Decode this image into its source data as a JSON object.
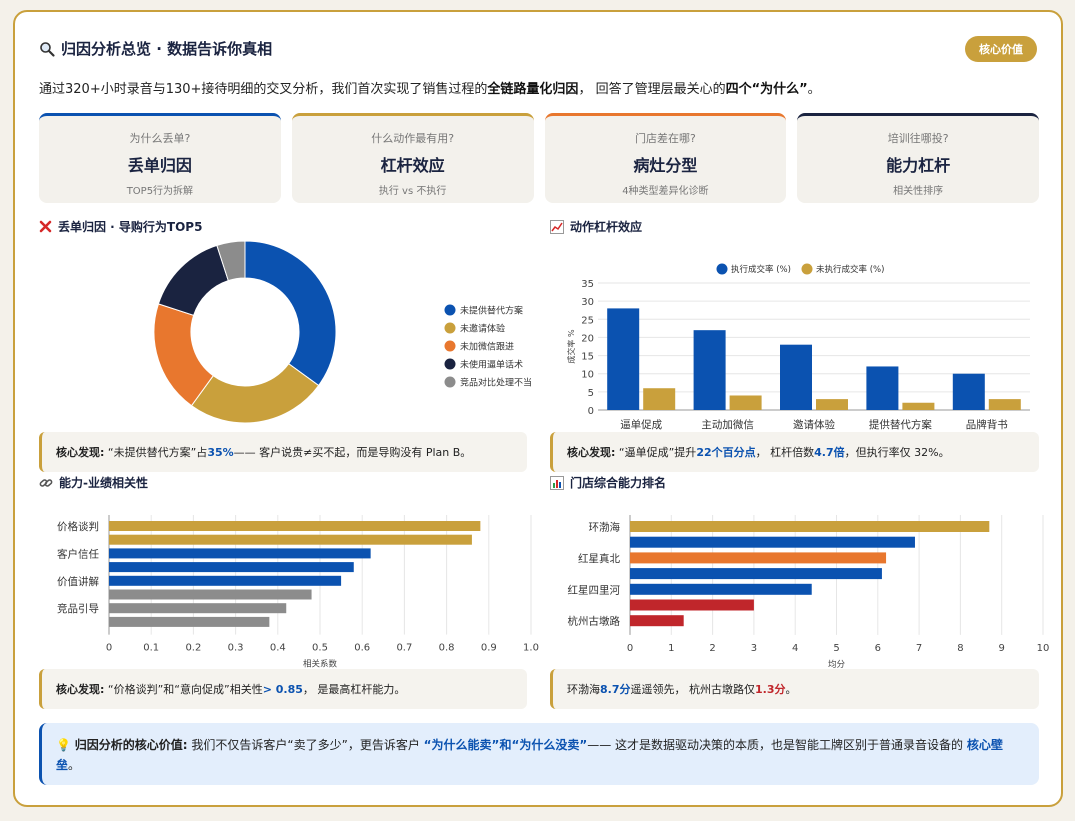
{
  "header": {
    "title": "归因分析总览 · 数据告诉你真相",
    "badge": "核心价值"
  },
  "intro": {
    "p1": "通过320+小时录音与130+接待明细的交叉分析，我们首次实现了销售过程的",
    "b1": "全链路量化归因",
    "p2": "， 回答了管理层最关心的",
    "b2": "四个“为什么”",
    "p3": "。"
  },
  "cards": [
    {
      "q": "为什么丢单?",
      "h": "丢单归因",
      "s": "TOP5行为拆解",
      "color": "#0b52b0"
    },
    {
      "q": "什么动作最有用?",
      "h": "杠杆效应",
      "s": "执行 vs 不执行",
      "color": "#c9a03c"
    },
    {
      "q": "门店差在哪?",
      "h": "病灶分型",
      "s": "4种类型差异化诊断",
      "color": "#e8772e"
    },
    {
      "q": "培训往哪投?",
      "h": "能力杠杆",
      "s": "相关性排序",
      "color": "#1a2340"
    }
  ],
  "sections": {
    "donut": "丢单归因 · 导购行为TOP5",
    "leverage": "动作杠杆效应",
    "correlation": "能力-业绩相关性",
    "ranking": "门店综合能力排名"
  },
  "findings": {
    "f1": {
      "label": "核心发现:",
      "a": "“未提供替代方案”占 ",
      "v": "35%",
      "b": " —— 客户说贵≠买不起，而是导购没有 Plan B。"
    },
    "f2": {
      "label": "核心发现:",
      "a": "“逼单促成”提升 ",
      "v1": "22个百分点",
      "b": "， 杠杆倍数 ",
      "v2": "4.7倍",
      "c": "，但执行率仅 32%。"
    },
    "f3": {
      "label": "核心发现:",
      "a": "“价格谈判”和“意向促成”相关性 ",
      "v": "> 0.85",
      "b": "， 是最高杠杆能力。"
    },
    "f4": {
      "a": "环渤海 ",
      "v1": "8.7分",
      "b": " 遥遥领先， 杭州古墩路仅 ",
      "v2": "1.3分",
      "c": "。"
    }
  },
  "value_box": {
    "label": "归因分析的核心价值:",
    "a": " 我们不仅告诉客户“卖了多少”，更告诉客户 ",
    "v1": "“为什么能卖”和“为什么没卖”",
    "b": "—— 这才是数据驱动决策的本质，也是智能工牌区别于普通录音设备的 ",
    "v2": "核心壁垒",
    "c": "。"
  },
  "chart_data": [
    {
      "type": "pie",
      "title": "丢单归因 · 导购行为TOP5",
      "labels": [
        "未提供替代方案",
        "未邀请体验",
        "未加微信跟进",
        "未使用逼单话术",
        "竞品对比处理不当"
      ],
      "values": [
        35,
        25,
        20,
        15,
        5
      ],
      "colors": [
        "#0b52b0",
        "#c9a03c",
        "#e8772e",
        "#1a2340",
        "#8c8c8c"
      ],
      "legend": "right"
    },
    {
      "type": "bar",
      "title": "动作杠杆效应",
      "categories": [
        "逼单促成",
        "主动加微信",
        "邀请体验",
        "提供替代方案",
        "品牌背书"
      ],
      "series": [
        {
          "name": "执行成交率 (%)",
          "values": [
            28,
            22,
            18,
            12,
            10
          ],
          "color": "#0b52b0"
        },
        {
          "name": "未执行成交率 (%)",
          "values": [
            6,
            4,
            3,
            2,
            3
          ],
          "color": "#c9a03c"
        }
      ],
      "ylabel": "成交率 %",
      "ylim": [
        0,
        35
      ],
      "yticks": [
        0,
        5,
        10,
        15,
        20,
        25,
        30,
        35
      ],
      "legend": "top"
    },
    {
      "type": "bar",
      "orientation": "horizontal",
      "title": "能力-业绩相关性",
      "labels": [
        "价格谈判",
        "",
        "客户信任",
        "",
        "价值讲解",
        "",
        "竞品引导",
        ""
      ],
      "values": [
        0.88,
        0.86,
        0.62,
        0.58,
        0.55,
        0.48,
        0.42,
        0.38
      ],
      "colors": [
        "#c9a03c",
        "#c9a03c",
        "#0b52b0",
        "#0b52b0",
        "#0b52b0",
        "#8c8c8c",
        "#8c8c8c",
        "#8c8c8c"
      ],
      "xlabel": "相关系数",
      "xlim": [
        0,
        1
      ],
      "xticks": [
        "0",
        "0.1",
        "0.2",
        "0.3",
        "0.4",
        "0.5",
        "0.6",
        "0.7",
        "0.8",
        "0.9",
        "1.0"
      ]
    },
    {
      "type": "bar",
      "orientation": "horizontal",
      "title": "门店综合能力排名",
      "labels": [
        "环渤海",
        "",
        "红星真北",
        "",
        "红星四里河",
        "",
        "杭州古墩路"
      ],
      "values": [
        8.7,
        6.9,
        6.2,
        6.1,
        4.4,
        3.0,
        1.3
      ],
      "colors": [
        "#c9a03c",
        "#0b52b0",
        "#e8772e",
        "#0b52b0",
        "#0b52b0",
        "#c0262b",
        "#c0262b"
      ],
      "xlabel": "均分",
      "xlim": [
        0,
        10
      ],
      "xticks": [
        "0",
        "1",
        "2",
        "3",
        "4",
        "5",
        "6",
        "7",
        "8",
        "9",
        "10"
      ]
    }
  ]
}
